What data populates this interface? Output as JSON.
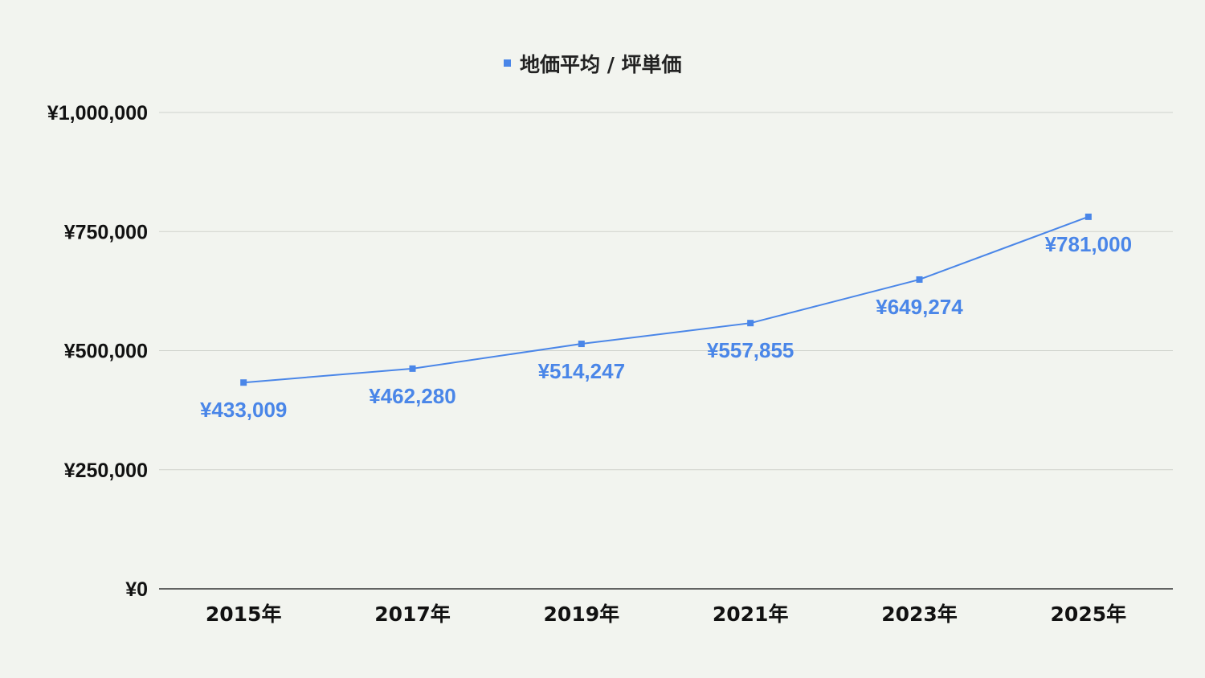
{
  "chart_data": {
    "type": "line",
    "title": "",
    "xlabel": "",
    "ylabel": "",
    "categories": [
      "2015年",
      "2017年",
      "2019年",
      "2021年",
      "2023年",
      "2025年"
    ],
    "series": [
      {
        "name": "地価平均 / 坪単価",
        "values": [
          433009,
          462280,
          514247,
          557855,
          649274,
          781000
        ],
        "labels": [
          "¥433,009",
          "¥462,280",
          "¥514,247",
          "¥557,855",
          "¥649,274",
          "¥781,000"
        ]
      }
    ],
    "ylim": [
      0,
      1000000
    ],
    "yticks": [
      0,
      250000,
      500000,
      750000,
      1000000
    ],
    "ytick_labels": [
      "¥0",
      "¥250,000",
      "¥500,000",
      "¥750,000",
      "¥1,000,000"
    ],
    "legend_position": "top-center",
    "grid": true,
    "marker": "square",
    "data_labels": "below",
    "colors": {
      "series": "#4a86e8",
      "gridline": "#cfd2cc",
      "axis": "#333333",
      "tick_text": "#111111",
      "legend_text": "#222222",
      "background": "#f2f4ef"
    }
  }
}
